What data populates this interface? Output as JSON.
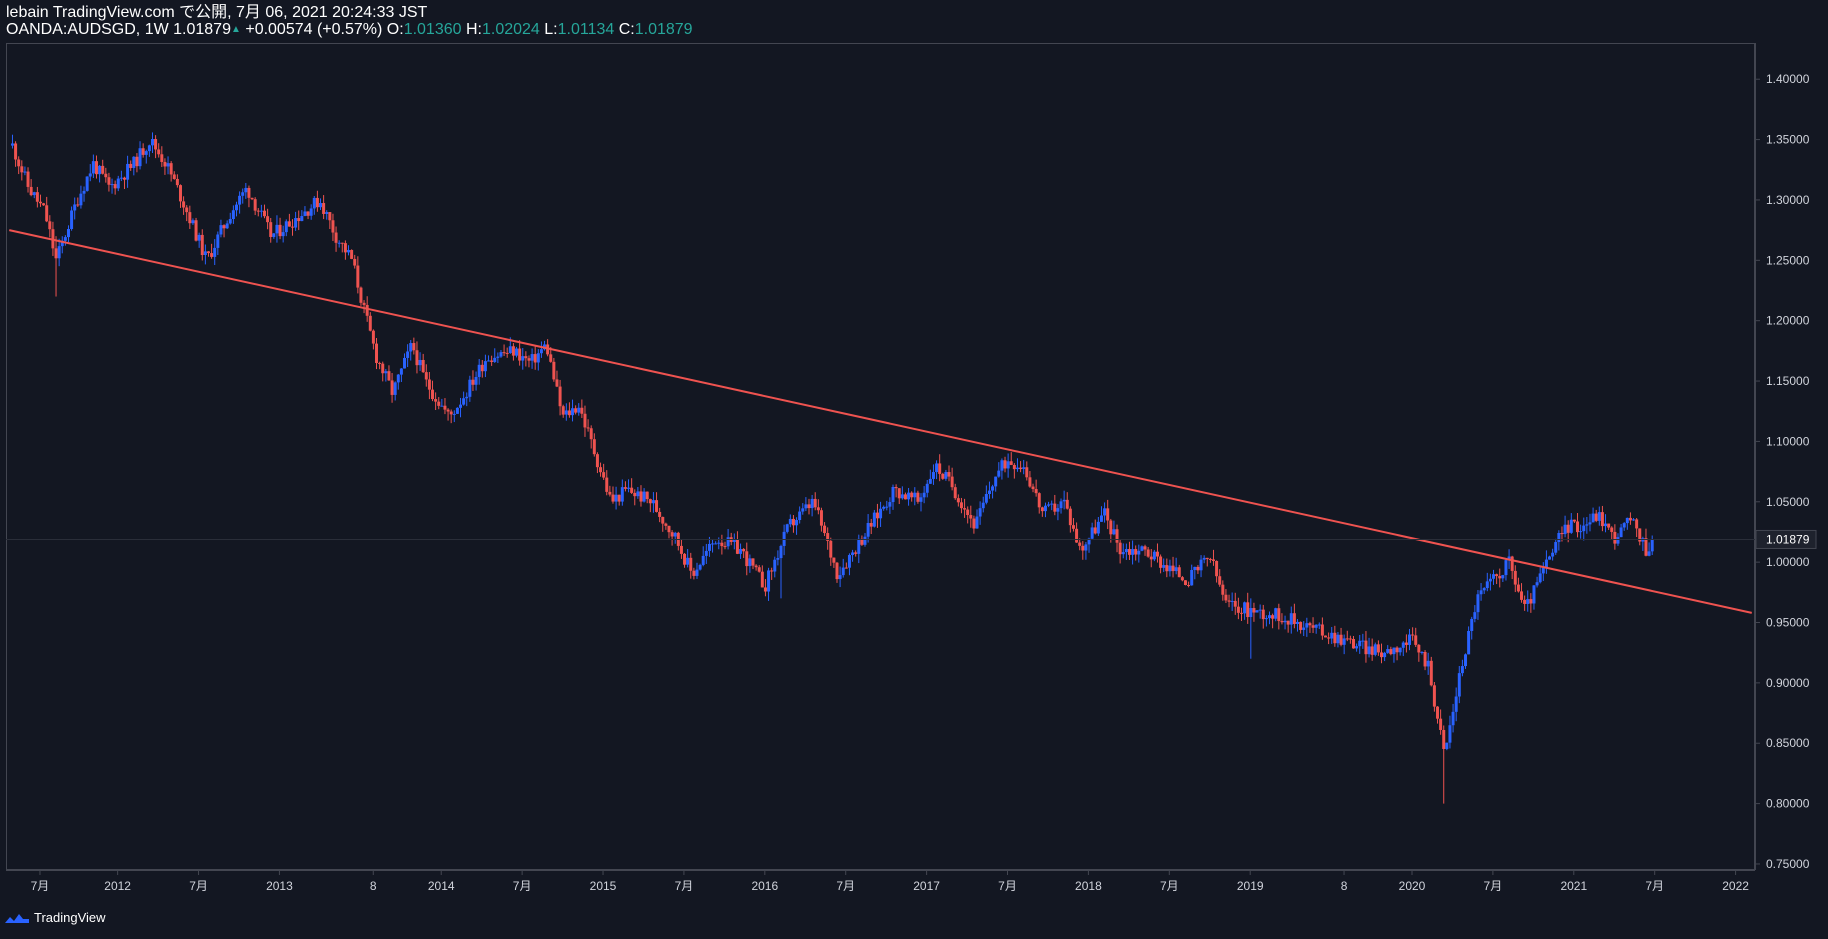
{
  "header": {
    "publish_line": "lebain TradingView.com で公開, 7月 06, 2021 20:24:33 JST",
    "symbol": "OANDA:AUDSGD, 1W",
    "last": "1.01879",
    "change_arrow": "▲",
    "change": "+0.00574 (+0.57%)",
    "o_label": "O:",
    "o_value": "1.01360",
    "h_label": "H:",
    "h_value": "1.02024",
    "l_label": "L:",
    "l_value": "1.01134",
    "c_label": "C:",
    "c_value": "1.01879"
  },
  "footer": {
    "brand": "TradingView"
  },
  "colors": {
    "background": "#131722",
    "up": "#2962ff",
    "down": "#ef5350",
    "trendline": "#ef5350",
    "price_label_bg": "#1e222d",
    "text_up": "#26a69a"
  },
  "chart_data": {
    "type": "candlestick",
    "symbol": "OANDA:AUDSGD",
    "timeframe": "1W",
    "ylim": [
      0.745,
      1.43
    ],
    "y_ticks": [
      "1.40000",
      "1.35000",
      "1.30000",
      "1.25000",
      "1.20000",
      "1.15000",
      "1.10000",
      "1.05000",
      "1.00000",
      "0.95000",
      "0.90000",
      "0.85000",
      "0.80000",
      "0.75000"
    ],
    "x_ticks": [
      "7月",
      "2012",
      "7月",
      "2013",
      "8",
      "2014",
      "7月",
      "2015",
      "7月",
      "2016",
      "7月",
      "2017",
      "7月",
      "2018",
      "7月",
      "2019",
      "8",
      "2020",
      "7月",
      "2021",
      "7月",
      "2022"
    ],
    "x_tick_dates": [
      2011.52,
      2012.0,
      2012.5,
      2013.0,
      2013.58,
      2014.0,
      2014.5,
      2015.0,
      2015.5,
      2016.0,
      2016.5,
      2017.0,
      2017.5,
      2018.0,
      2018.5,
      2019.0,
      2019.58,
      2020.0,
      2020.5,
      2021.0,
      2021.5,
      2022.0
    ],
    "current_price_label": "1.01879",
    "close_path": [
      [
        2011.35,
        1.345
      ],
      [
        2011.45,
        1.31
      ],
      [
        2011.55,
        1.29
      ],
      [
        2011.62,
        1.25
      ],
      [
        2011.75,
        1.3
      ],
      [
        2011.85,
        1.33
      ],
      [
        2011.95,
        1.31
      ],
      [
        2012.1,
        1.33
      ],
      [
        2012.2,
        1.35
      ],
      [
        2012.3,
        1.33
      ],
      [
        2012.4,
        1.3
      ],
      [
        2012.55,
        1.25
      ],
      [
        2012.7,
        1.29
      ],
      [
        2012.8,
        1.31
      ],
      [
        2012.95,
        1.27
      ],
      [
        2013.05,
        1.28
      ],
      [
        2013.15,
        1.29
      ],
      [
        2013.25,
        1.3
      ],
      [
        2013.35,
        1.27
      ],
      [
        2013.45,
        1.25
      ],
      [
        2013.52,
        1.21
      ],
      [
        2013.6,
        1.17
      ],
      [
        2013.7,
        1.14
      ],
      [
        2013.82,
        1.18
      ],
      [
        2013.9,
        1.15
      ],
      [
        2014.05,
        1.12
      ],
      [
        2014.15,
        1.14
      ],
      [
        2014.28,
        1.17
      ],
      [
        2014.45,
        1.175
      ],
      [
        2014.55,
        1.165
      ],
      [
        2014.65,
        1.18
      ],
      [
        2014.75,
        1.12
      ],
      [
        2014.85,
        1.13
      ],
      [
        2014.95,
        1.09
      ],
      [
        2015.05,
        1.05
      ],
      [
        2015.15,
        1.06
      ],
      [
        2015.3,
        1.05
      ],
      [
        2015.45,
        1.02
      ],
      [
        2015.55,
        0.99
      ],
      [
        2015.7,
        1.02
      ],
      [
        2015.85,
        1.01
      ],
      [
        2016.0,
        0.98
      ],
      [
        2016.15,
        1.03
      ],
      [
        2016.3,
        1.05
      ],
      [
        2016.45,
        0.99
      ],
      [
        2016.65,
        1.03
      ],
      [
        2016.8,
        1.06
      ],
      [
        2016.95,
        1.05
      ],
      [
        2017.05,
        1.08
      ],
      [
        2017.15,
        1.065
      ],
      [
        2017.3,
        1.03
      ],
      [
        2017.42,
        1.07
      ],
      [
        2017.5,
        1.085
      ],
      [
        2017.6,
        1.08
      ],
      [
        2017.72,
        1.04
      ],
      [
        2017.85,
        1.05
      ],
      [
        2017.95,
        1.01
      ],
      [
        2018.1,
        1.04
      ],
      [
        2018.2,
        1.01
      ],
      [
        2018.35,
        1.01
      ],
      [
        2018.5,
        0.995
      ],
      [
        2018.62,
        0.985
      ],
      [
        2018.75,
        1.005
      ],
      [
        2018.85,
        0.965
      ],
      [
        2019.0,
        0.96
      ],
      [
        2019.2,
        0.955
      ],
      [
        2019.4,
        0.945
      ],
      [
        2019.6,
        0.935
      ],
      [
        2019.8,
        0.925
      ],
      [
        2020.0,
        0.935
      ],
      [
        2020.1,
        0.915
      ],
      [
        2020.2,
        0.84
      ],
      [
        2020.3,
        0.91
      ],
      [
        2020.4,
        0.97
      ],
      [
        2020.5,
        0.985
      ],
      [
        2020.6,
        1.0
      ],
      [
        2020.7,
        0.96
      ],
      [
        2020.8,
        0.99
      ],
      [
        2020.95,
        1.03
      ],
      [
        2021.05,
        1.03
      ],
      [
        2021.15,
        1.04
      ],
      [
        2021.25,
        1.02
      ],
      [
        2021.35,
        1.035
      ],
      [
        2021.45,
        1.01
      ],
      [
        2021.5,
        1.019
      ]
    ],
    "extremes": [
      [
        2020.2,
        0.8,
        0.86
      ],
      [
        2011.62,
        1.22,
        1.27
      ],
      [
        2016.1,
        0.97,
        1.0
      ],
      [
        2019.0,
        0.92,
        0.97
      ]
    ],
    "trendline": {
      "from": [
        2011.33,
        1.275
      ],
      "to": [
        2022.1,
        0.958
      ]
    },
    "last_price": 1.01879
  }
}
